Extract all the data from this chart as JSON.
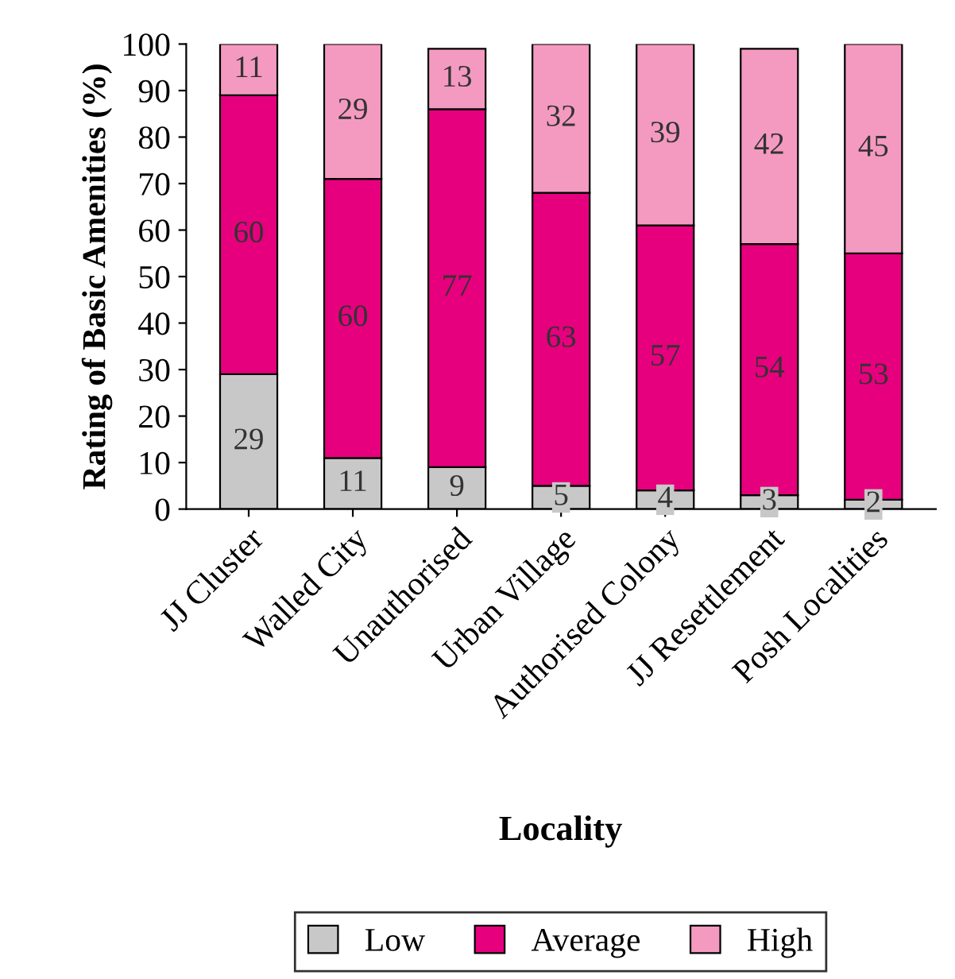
{
  "chart_data": {
    "type": "bar",
    "stacked": true,
    "xlabel": "Locality",
    "ylabel": "Rating of Basic Amenities (%)",
    "categories": [
      "JJ Cluster",
      "Walled City",
      "Unauthorised",
      "Urban Village",
      "Authorised Colony",
      "JJ Resettlement",
      "Posh Localities"
    ],
    "series": [
      {
        "name": "Low",
        "color": "#c8c8c8",
        "values": [
          29,
          11,
          9,
          5,
          4,
          3,
          2
        ]
      },
      {
        "name": "Average",
        "color": "#e6007e",
        "values": [
          60,
          60,
          77,
          63,
          57,
          54,
          53
        ]
      },
      {
        "name": "High",
        "color": "#f49ac1",
        "values": [
          11,
          29,
          13,
          32,
          39,
          42,
          45
        ]
      }
    ],
    "ylim": [
      0,
      100
    ],
    "yticks": [
      0,
      10,
      20,
      30,
      40,
      50,
      60,
      70,
      80,
      90,
      100
    ],
    "data_labels": true,
    "legend": "bottom",
    "grid": false
  }
}
